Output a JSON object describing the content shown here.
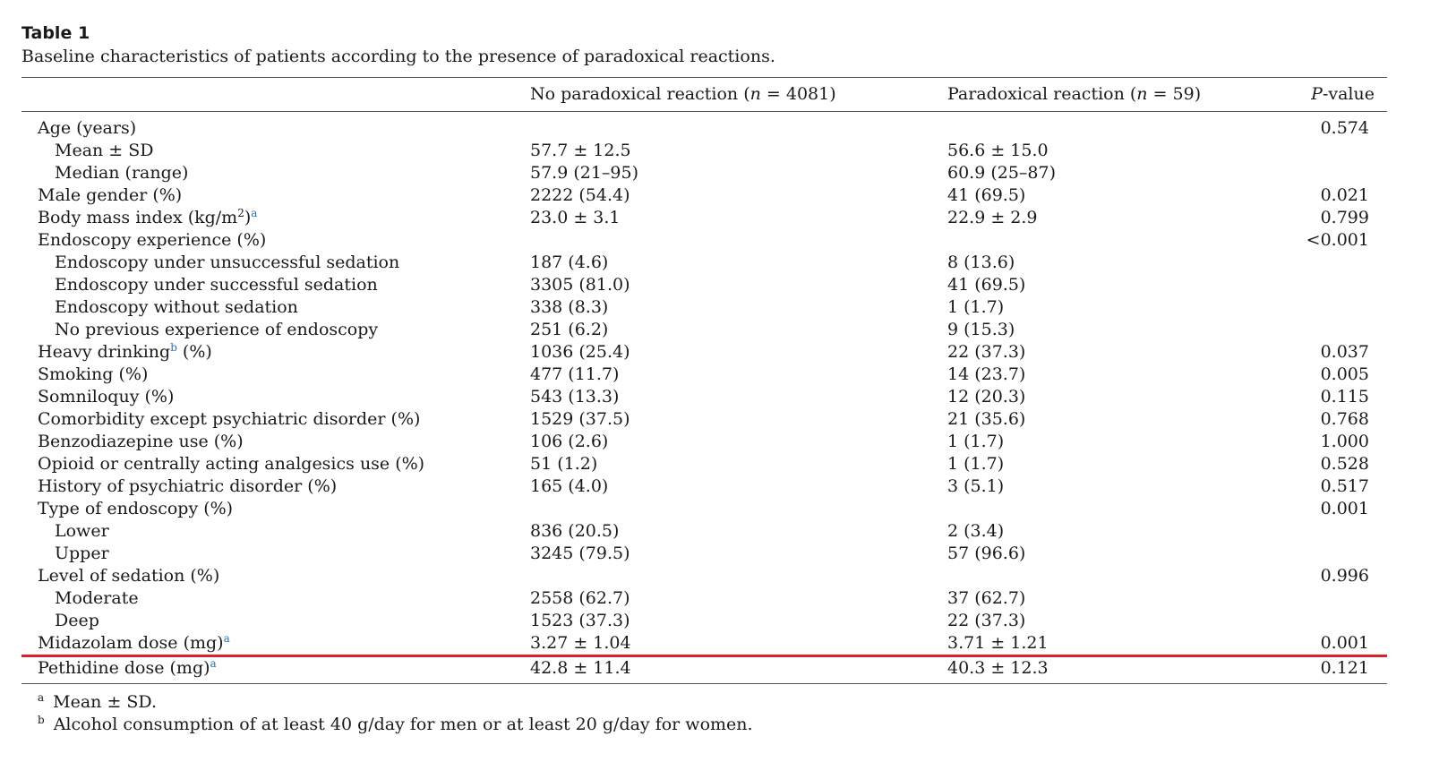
{
  "table": {
    "number": "Table 1",
    "caption": "Baseline characteristics of patients according to the presence of paradoxical reactions.",
    "headers": {
      "c1_pre": "No paradoxical reaction (",
      "c1_var": "n",
      "c1_post": " = 4081)",
      "c2_pre": "Paradoxical reaction (",
      "c2_var": "n",
      "c2_post": " = 59)",
      "pv_var": "P",
      "pv_post": "-value"
    },
    "rows": [
      {
        "label": "Age (years)",
        "sub": false,
        "c1": "",
        "c2": "",
        "p": "0.574"
      },
      {
        "label": "Mean ± SD",
        "sub": true,
        "c1": "57.7 ± 12.5",
        "c2": "56.6 ± 15.0",
        "p": ""
      },
      {
        "label": "Median (range)",
        "sub": true,
        "c1": "57.9 (21–95)",
        "c2": "60.9 (25–87)",
        "p": ""
      },
      {
        "label": "Male gender (%)",
        "sub": false,
        "c1": "2222 (54.4)",
        "c2": "41 (69.5)",
        "p": "0.021"
      },
      {
        "label": "Body mass index (kg/m",
        "label_sup": "2",
        "label_post": ")",
        "fn": "a",
        "sub": false,
        "c1": "23.0 ± 3.1",
        "c2": "22.9 ± 2.9",
        "p": "0.799"
      },
      {
        "label": "Endoscopy experience (%)",
        "sub": false,
        "c1": "",
        "c2": "",
        "p": "<0.001"
      },
      {
        "label": "Endoscopy under unsuccessful sedation",
        "sub": true,
        "c1": "187 (4.6)",
        "c2": "8 (13.6)",
        "p": ""
      },
      {
        "label": "Endoscopy under successful sedation",
        "sub": true,
        "c1": "3305 (81.0)",
        "c2": "41 (69.5)",
        "p": ""
      },
      {
        "label": "Endoscopy without sedation",
        "sub": true,
        "c1": "338 (8.3)",
        "c2": "1 (1.7)",
        "p": ""
      },
      {
        "label": "No previous experience of endoscopy",
        "sub": true,
        "c1": "251 (6.2)",
        "c2": "9 (15.3)",
        "p": ""
      },
      {
        "label": "Heavy drinking",
        "fn": "b",
        "label_post": " (%)",
        "sub": false,
        "c1": "1036 (25.4)",
        "c2": "22 (37.3)",
        "p": "0.037"
      },
      {
        "label": "Smoking (%)",
        "sub": false,
        "c1": "477 (11.7)",
        "c2": "14 (23.7)",
        "p": "0.005"
      },
      {
        "label": "Somniloquy (%)",
        "sub": false,
        "c1": "543 (13.3)",
        "c2": "12 (20.3)",
        "p": "0.115"
      },
      {
        "label": "Comorbidity except psychiatric disorder (%)",
        "sub": false,
        "c1": "1529 (37.5)",
        "c2": "21 (35.6)",
        "p": "0.768"
      },
      {
        "label": "Benzodiazepine use (%)",
        "sub": false,
        "c1": "106 (2.6)",
        "c2": "1 (1.7)",
        "p": "1.000"
      },
      {
        "label": "Opioid or centrally acting analgesics use (%)",
        "sub": false,
        "c1": "51 (1.2)",
        "c2": "1 (1.7)",
        "p": "0.528"
      },
      {
        "label": "History of psychiatric disorder (%)",
        "sub": false,
        "c1": "165 (4.0)",
        "c2": "3 (5.1)",
        "p": "0.517"
      },
      {
        "label": "Type of endoscopy (%)",
        "sub": false,
        "c1": "",
        "c2": "",
        "p": "0.001"
      },
      {
        "label": "Lower",
        "sub": true,
        "c1": "836 (20.5)",
        "c2": "2 (3.4)",
        "p": ""
      },
      {
        "label": "Upper",
        "sub": true,
        "c1": "3245 (79.5)",
        "c2": "57 (96.6)",
        "p": ""
      },
      {
        "label": "Level of sedation (%)",
        "sub": false,
        "c1": "",
        "c2": "",
        "p": "0.996"
      },
      {
        "label": "Moderate",
        "sub": true,
        "c1": "2558 (62.7)",
        "c2": "37 (62.7)",
        "p": ""
      },
      {
        "label": "Deep",
        "sub": true,
        "c1": "1523 (37.3)",
        "c2": "22 (37.3)",
        "p": ""
      },
      {
        "label": "Midazolam dose (mg)",
        "fn": "a",
        "sub": false,
        "c1": "3.27 ± 1.04",
        "c2": "3.71 ± 1.21",
        "p": "0.001",
        "highlight": true
      },
      {
        "label": "Pethidine dose (mg)",
        "fn": "a",
        "sub": false,
        "c1": "42.8 ± 11.4",
        "c2": "40.3 ± 12.3",
        "p": "0.121"
      }
    ],
    "footnotes": [
      {
        "mark": "a",
        "text": "Mean ± SD."
      },
      {
        "mark": "b",
        "text": "Alcohol consumption of at least 40 g/day for men or at least 20 g/day for women."
      }
    ]
  },
  "colors": {
    "highlight_line": "#d8232a",
    "footnote_link": "#2a6fb5",
    "rule": "#555555"
  }
}
